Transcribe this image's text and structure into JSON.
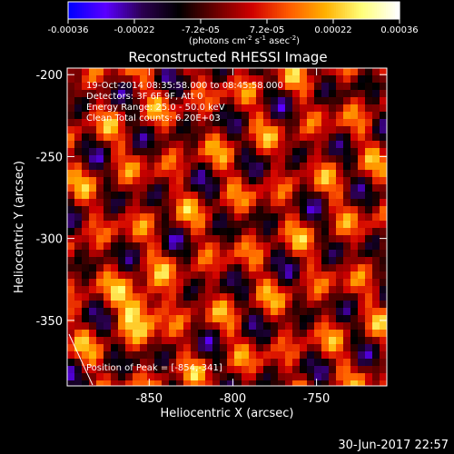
{
  "colorbar": {
    "ticks": [
      "-0.00036",
      "-0.00022",
      "-7.2e-05",
      "7.2e-05",
      "0.00022",
      "0.00036"
    ],
    "units_prefix": "(photons cm",
    "units_exp1": "-2",
    "units_mid": " s",
    "units_exp2": "-1",
    "units_mid2": " asec",
    "units_exp3": "-2",
    "units_suffix": ")",
    "min": -0.00036,
    "max": 0.00036,
    "colormap": [
      "#0000ff",
      "#5b00ff",
      "#2b0050",
      "#000000",
      "#6a0000",
      "#d00000",
      "#ff5a00",
      "#ffb000",
      "#ffff7a",
      "#ffffff"
    ]
  },
  "chart_data": {
    "type": "heatmap",
    "title": "Reconstructed RHESSI Image",
    "xlabel": "Heliocentric X (arcsec)",
    "ylabel": "Heliocentric Y (arcsec)",
    "x_ticks": [
      -850,
      -800,
      -750
    ],
    "y_ticks": [
      -200,
      -250,
      -300,
      -350
    ],
    "xlim": [
      -899,
      -708
    ],
    "ylim": [
      -390,
      -196
    ],
    "info_lines": [
      "19-Oct-2014 08:35:58.000 to 08:45:58.000",
      "Detectors: 3F 6F 9F, Att 0",
      "Energy Range: 25.0 - 50.0 keV",
      "Clean     Total counts: 6.20E+03"
    ],
    "peak_label": "Position of Peak = [-854,-341]",
    "peak": [
      -854,
      -341
    ]
  },
  "timestamp": "30-Jun-2017 22:57"
}
